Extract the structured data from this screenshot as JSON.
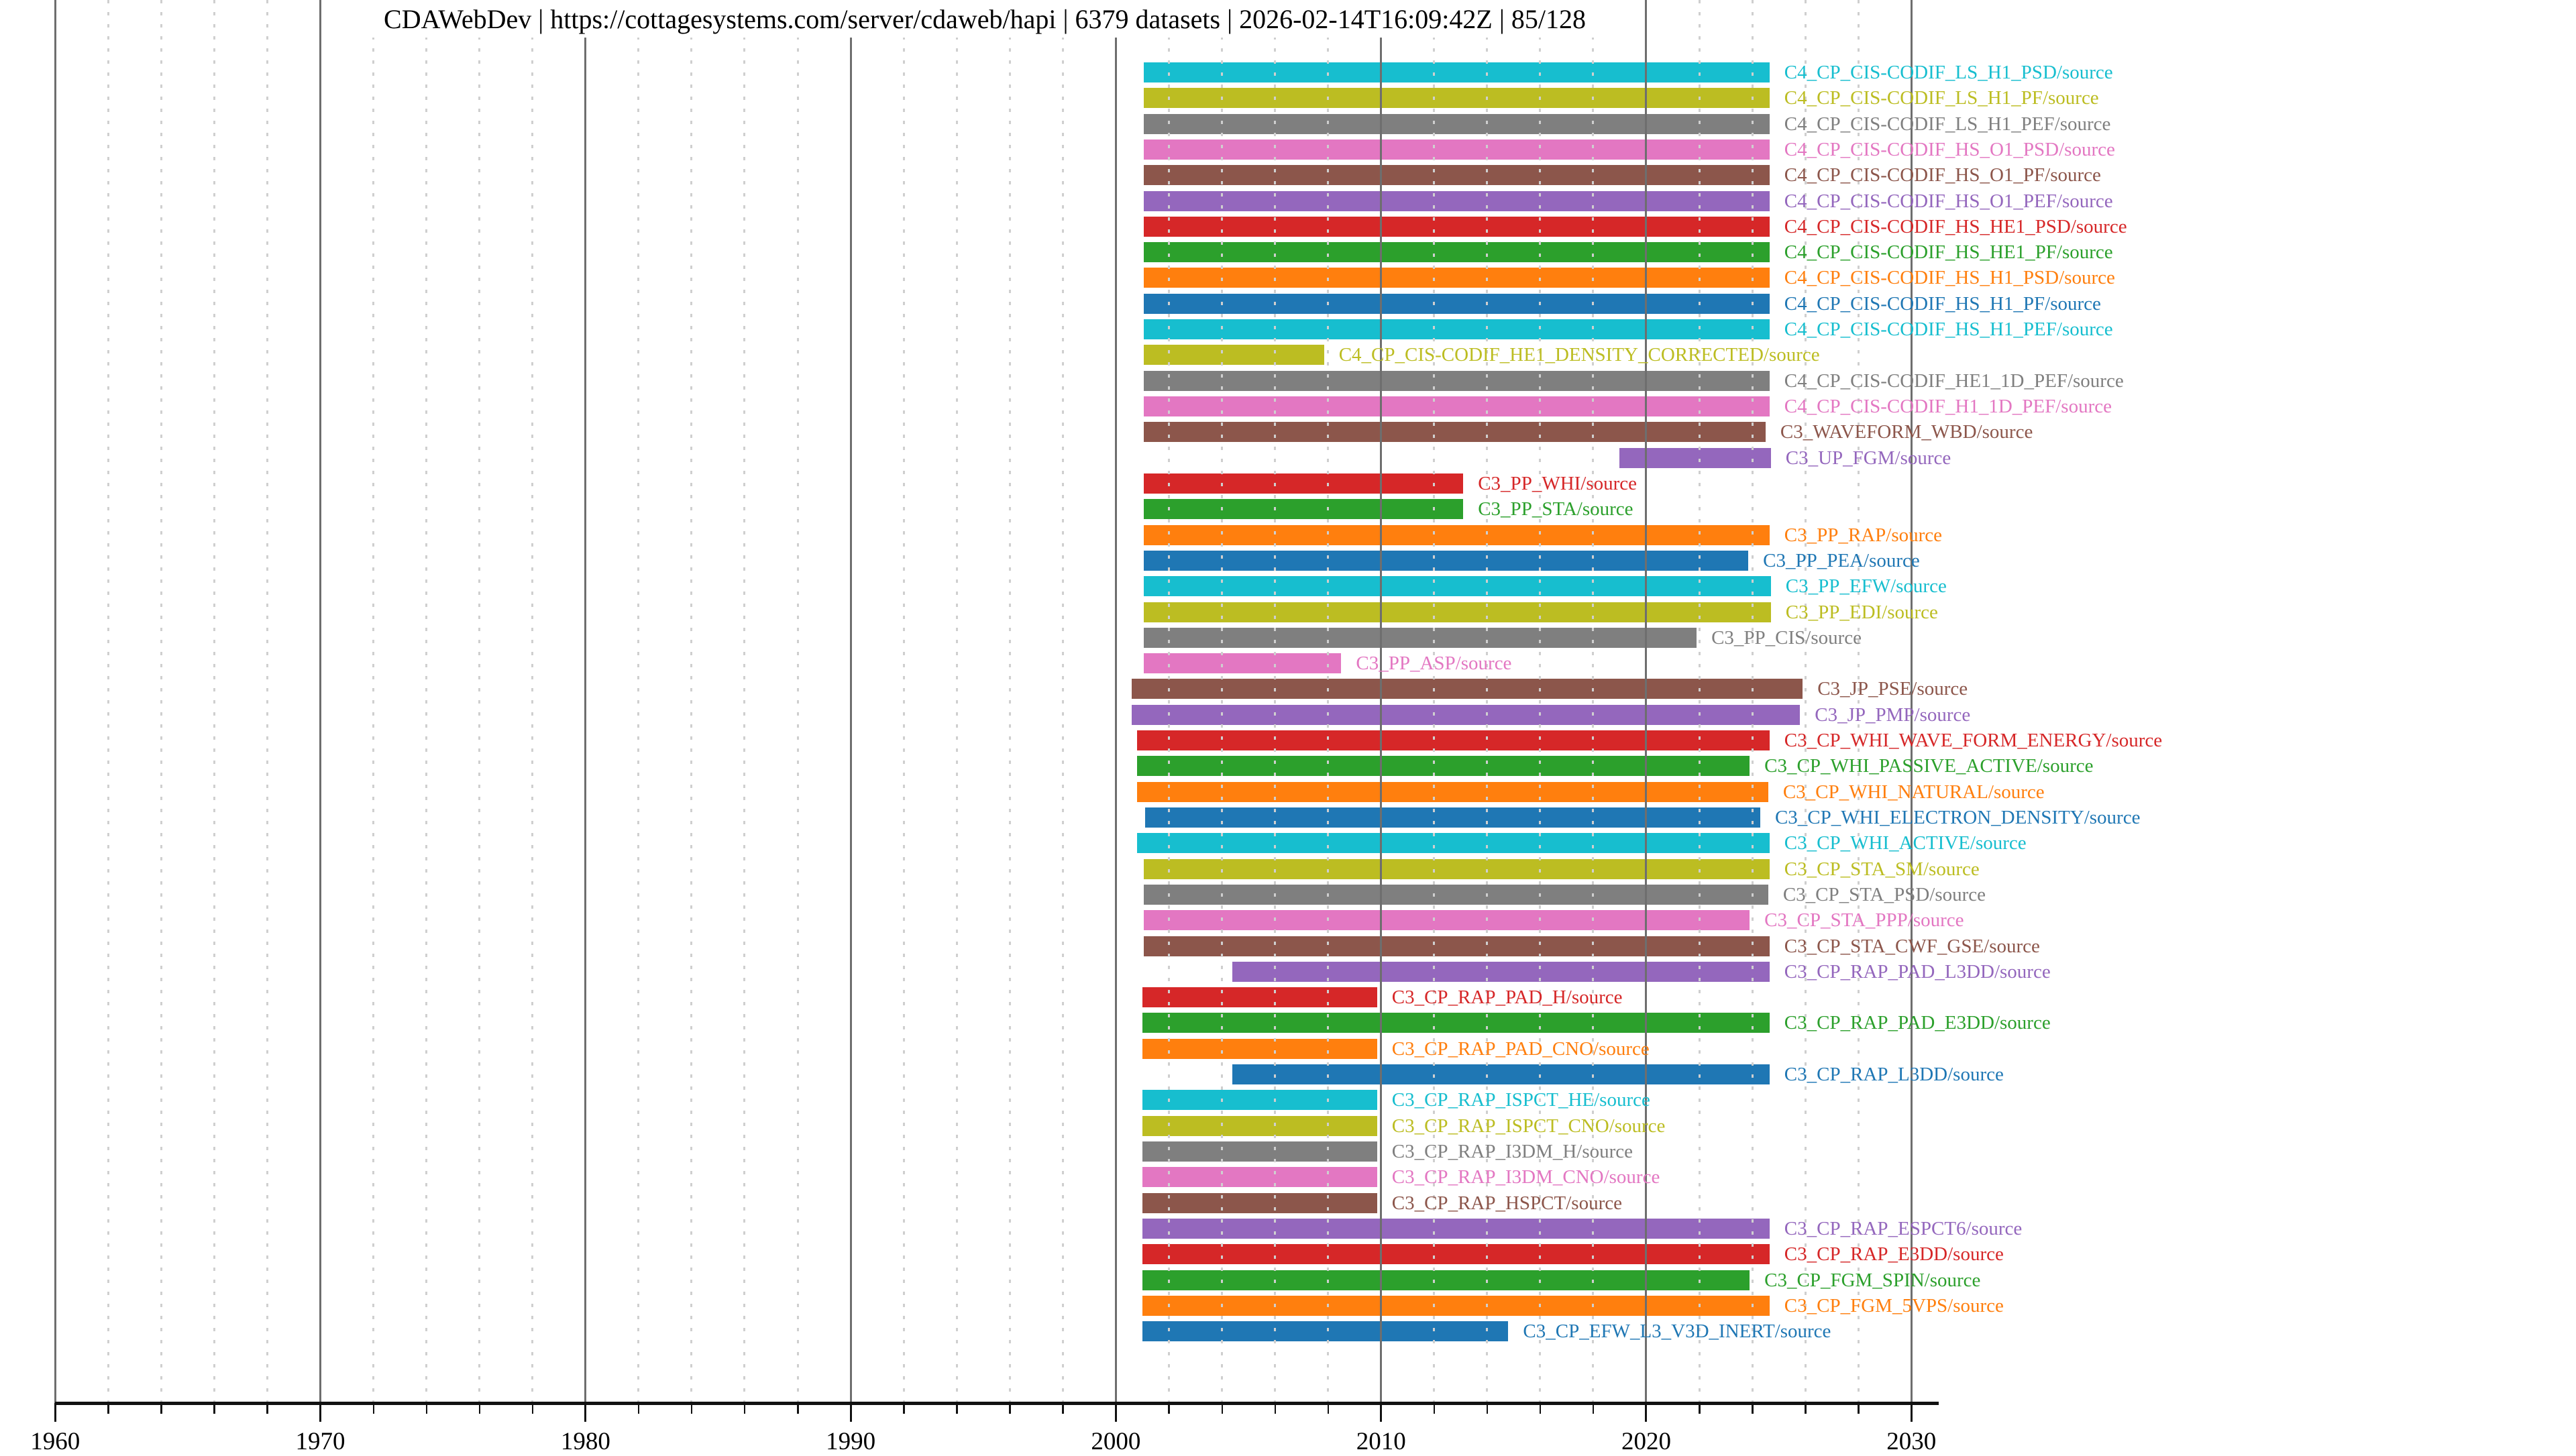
{
  "header": {
    "title": "CDAWebDev | https://cottagesystems.com/server/cdaweb/hapi | 6379 datasets | 2026-02-14T16:09:42Z | 85/128",
    "server_label": "CDAWebDev",
    "server_url": "https://cottagesystems.com/server/cdaweb/hapi",
    "dataset_count_text": "6379 datasets",
    "timestamp": "2026-02-14T16:09:42Z",
    "progress": "85/128"
  },
  "chart_data": {
    "type": "bar",
    "orientation": "horizontal-gantt",
    "title": "CDAWebDev | https://cottagesystems.com/server/cdaweb/hapi | 6379 datasets | 2026-02-14T16:09:42Z | 85/128",
    "xlabel": "",
    "ylabel": "",
    "xlim": [
      1960,
      2031
    ],
    "x_major_ticks": [
      1960,
      1970,
      1980,
      1990,
      2000,
      2010,
      2020,
      2030
    ],
    "x_minor_tick_step": 2,
    "grid": "major-solid-minor-dashed",
    "legend_position": "none",
    "label_suffix": "/source",
    "rows": [
      {
        "id": "C4_CP_CIS-CODIF_LS_H1_PSD",
        "color": "#17becf",
        "start": 2001.05,
        "end": 2024.65
      },
      {
        "id": "C4_CP_CIS-CODIF_LS_H1_PF",
        "color": "#bcbd22",
        "start": 2001.05,
        "end": 2024.65
      },
      {
        "id": "C4_CP_CIS-CODIF_LS_H1_PEF",
        "color": "#7f7f7f",
        "start": 2001.05,
        "end": 2024.65
      },
      {
        "id": "C4_CP_CIS-CODIF_HS_O1_PSD",
        "color": "#e377c2",
        "start": 2001.05,
        "end": 2024.65
      },
      {
        "id": "C4_CP_CIS-CODIF_HS_O1_PF",
        "color": "#8c564b",
        "start": 2001.05,
        "end": 2024.65
      },
      {
        "id": "C4_CP_CIS-CODIF_HS_O1_PEF",
        "color": "#9467bd",
        "start": 2001.05,
        "end": 2024.65
      },
      {
        "id": "C4_CP_CIS-CODIF_HS_HE1_PSD",
        "color": "#d62728",
        "start": 2001.05,
        "end": 2024.65
      },
      {
        "id": "C4_CP_CIS-CODIF_HS_HE1_PF",
        "color": "#2ca02c",
        "start": 2001.05,
        "end": 2024.65
      },
      {
        "id": "C4_CP_CIS-CODIF_HS_H1_PSD",
        "color": "#ff7f0e",
        "start": 2001.05,
        "end": 2024.65
      },
      {
        "id": "C4_CP_CIS-CODIF_HS_H1_PF",
        "color": "#1f77b4",
        "start": 2001.05,
        "end": 2024.65
      },
      {
        "id": "C4_CP_CIS-CODIF_HS_H1_PEF",
        "color": "#17becf",
        "start": 2001.05,
        "end": 2024.65
      },
      {
        "id": "C4_CP_CIS-CODIF_HE1_DENSITY_CORRECTED",
        "color": "#bcbd22",
        "start": 2001.05,
        "end": 2007.85
      },
      {
        "id": "C4_CP_CIS-CODIF_HE1_1D_PEF",
        "color": "#7f7f7f",
        "start": 2001.05,
        "end": 2024.65
      },
      {
        "id": "C4_CP_CIS-CODIF_H1_1D_PEF",
        "color": "#e377c2",
        "start": 2001.05,
        "end": 2024.65
      },
      {
        "id": "C3_WAVEFORM_WBD",
        "color": "#8c564b",
        "start": 2001.05,
        "end": 2024.5
      },
      {
        "id": "C3_UP_FGM",
        "color": "#9467bd",
        "start": 2019.0,
        "end": 2024.7
      },
      {
        "id": "C3_PP_WHI",
        "color": "#d62728",
        "start": 2001.05,
        "end": 2013.1
      },
      {
        "id": "C3_PP_STA",
        "color": "#2ca02c",
        "start": 2001.05,
        "end": 2013.1
      },
      {
        "id": "C3_PP_RAP",
        "color": "#ff7f0e",
        "start": 2001.05,
        "end": 2024.65
      },
      {
        "id": "C3_PP_PEA",
        "color": "#1f77b4",
        "start": 2001.05,
        "end": 2023.85
      },
      {
        "id": "C3_PP_EFW",
        "color": "#17becf",
        "start": 2001.05,
        "end": 2024.7
      },
      {
        "id": "C3_PP_EDI",
        "color": "#bcbd22",
        "start": 2001.05,
        "end": 2024.7
      },
      {
        "id": "C3_PP_CIS",
        "color": "#7f7f7f",
        "start": 2001.05,
        "end": 2021.9
      },
      {
        "id": "C3_PP_ASP",
        "color": "#e377c2",
        "start": 2001.05,
        "end": 2008.5
      },
      {
        "id": "C3_JP_PSE",
        "color": "#8c564b",
        "start": 2000.6,
        "end": 2025.9
      },
      {
        "id": "C3_JP_PMP",
        "color": "#9467bd",
        "start": 2000.6,
        "end": 2025.8
      },
      {
        "id": "C3_CP_WHI_WAVE_FORM_ENERGY",
        "color": "#d62728",
        "start": 2000.8,
        "end": 2024.65
      },
      {
        "id": "C3_CP_WHI_PASSIVE_ACTIVE",
        "color": "#2ca02c",
        "start": 2000.8,
        "end": 2023.9
      },
      {
        "id": "C3_CP_WHI_NATURAL",
        "color": "#ff7f0e",
        "start": 2000.8,
        "end": 2024.6
      },
      {
        "id": "C3_CP_WHI_ELECTRON_DENSITY",
        "color": "#1f77b4",
        "start": 2001.1,
        "end": 2024.3
      },
      {
        "id": "C3_CP_WHI_ACTIVE",
        "color": "#17becf",
        "start": 2000.8,
        "end": 2024.65
      },
      {
        "id": "C3_CP_STA_SM",
        "color": "#bcbd22",
        "start": 2001.05,
        "end": 2024.65
      },
      {
        "id": "C3_CP_STA_PSD",
        "color": "#7f7f7f",
        "start": 2001.05,
        "end": 2024.6
      },
      {
        "id": "C3_CP_STA_PPP",
        "color": "#e377c2",
        "start": 2001.05,
        "end": 2023.9
      },
      {
        "id": "C3_CP_STA_CWF_GSE",
        "color": "#8c564b",
        "start": 2001.05,
        "end": 2024.65
      },
      {
        "id": "C3_CP_RAP_PAD_L3DD",
        "color": "#9467bd",
        "start": 2004.4,
        "end": 2024.65
      },
      {
        "id": "C3_CP_RAP_PAD_H",
        "color": "#d62728",
        "start": 2001.0,
        "end": 2009.85
      },
      {
        "id": "C3_CP_RAP_PAD_E3DD",
        "color": "#2ca02c",
        "start": 2001.0,
        "end": 2024.65
      },
      {
        "id": "C3_CP_RAP_PAD_CNO",
        "color": "#ff7f0e",
        "start": 2001.0,
        "end": 2009.85
      },
      {
        "id": "C3_CP_RAP_L3DD",
        "color": "#1f77b4",
        "start": 2004.4,
        "end": 2024.65
      },
      {
        "id": "C3_CP_RAP_ISPCT_HE",
        "color": "#17becf",
        "start": 2001.0,
        "end": 2009.85
      },
      {
        "id": "C3_CP_RAP_ISPCT_CNO",
        "color": "#bcbd22",
        "start": 2001.0,
        "end": 2009.85
      },
      {
        "id": "C3_CP_RAP_I3DM_H",
        "color": "#7f7f7f",
        "start": 2001.0,
        "end": 2009.85
      },
      {
        "id": "C3_CP_RAP_I3DM_CNO",
        "color": "#e377c2",
        "start": 2001.0,
        "end": 2009.85
      },
      {
        "id": "C3_CP_RAP_HSPCT",
        "color": "#8c564b",
        "start": 2001.0,
        "end": 2009.85
      },
      {
        "id": "C3_CP_RAP_ESPCT6",
        "color": "#9467bd",
        "start": 2001.0,
        "end": 2024.65
      },
      {
        "id": "C3_CP_RAP_E3DD",
        "color": "#d62728",
        "start": 2001.0,
        "end": 2024.65
      },
      {
        "id": "C3_CP_FGM_SPIN",
        "color": "#2ca02c",
        "start": 2001.0,
        "end": 2023.9
      },
      {
        "id": "C3_CP_FGM_5VPS",
        "color": "#ff7f0e",
        "start": 2001.0,
        "end": 2024.65
      },
      {
        "id": "C3_CP_EFW_L3_V3D_INERT",
        "color": "#1f77b4",
        "start": 2001.0,
        "end": 2014.8
      }
    ],
    "palette_tab10": [
      "#1f77b4",
      "#ff7f0e",
      "#2ca02c",
      "#d62728",
      "#9467bd",
      "#8c564b",
      "#e377c2",
      "#7f7f7f",
      "#bcbd22",
      "#17becf"
    ],
    "colors": {
      "grid_major": "#6e6e6e",
      "grid_minor": "#cfcfcf",
      "axis": "#111111",
      "background": "#ffffff"
    }
  }
}
